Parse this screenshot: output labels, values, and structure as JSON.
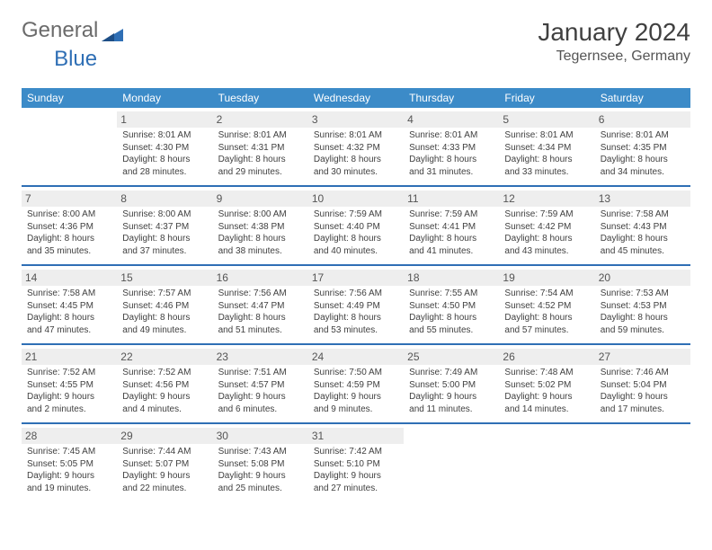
{
  "brand": {
    "part1": "General",
    "part2": "Blue"
  },
  "title": "January 2024",
  "location": "Tegernsee, Germany",
  "colors": {
    "header_bg": "#3c8bc8",
    "border": "#2f6fb5",
    "daynum_bg": "#eeeeee"
  },
  "dayNames": [
    "Sunday",
    "Monday",
    "Tuesday",
    "Wednesday",
    "Thursday",
    "Friday",
    "Saturday"
  ],
  "weeks": [
    [
      {
        "n": "",
        "sunrise": "",
        "sunset": "",
        "daylight": ""
      },
      {
        "n": "1",
        "sunrise": "Sunrise: 8:01 AM",
        "sunset": "Sunset: 4:30 PM",
        "daylight": "Daylight: 8 hours and 28 minutes."
      },
      {
        "n": "2",
        "sunrise": "Sunrise: 8:01 AM",
        "sunset": "Sunset: 4:31 PM",
        "daylight": "Daylight: 8 hours and 29 minutes."
      },
      {
        "n": "3",
        "sunrise": "Sunrise: 8:01 AM",
        "sunset": "Sunset: 4:32 PM",
        "daylight": "Daylight: 8 hours and 30 minutes."
      },
      {
        "n": "4",
        "sunrise": "Sunrise: 8:01 AM",
        "sunset": "Sunset: 4:33 PM",
        "daylight": "Daylight: 8 hours and 31 minutes."
      },
      {
        "n": "5",
        "sunrise": "Sunrise: 8:01 AM",
        "sunset": "Sunset: 4:34 PM",
        "daylight": "Daylight: 8 hours and 33 minutes."
      },
      {
        "n": "6",
        "sunrise": "Sunrise: 8:01 AM",
        "sunset": "Sunset: 4:35 PM",
        "daylight": "Daylight: 8 hours and 34 minutes."
      }
    ],
    [
      {
        "n": "7",
        "sunrise": "Sunrise: 8:00 AM",
        "sunset": "Sunset: 4:36 PM",
        "daylight": "Daylight: 8 hours and 35 minutes."
      },
      {
        "n": "8",
        "sunrise": "Sunrise: 8:00 AM",
        "sunset": "Sunset: 4:37 PM",
        "daylight": "Daylight: 8 hours and 37 minutes."
      },
      {
        "n": "9",
        "sunrise": "Sunrise: 8:00 AM",
        "sunset": "Sunset: 4:38 PM",
        "daylight": "Daylight: 8 hours and 38 minutes."
      },
      {
        "n": "10",
        "sunrise": "Sunrise: 7:59 AM",
        "sunset": "Sunset: 4:40 PM",
        "daylight": "Daylight: 8 hours and 40 minutes."
      },
      {
        "n": "11",
        "sunrise": "Sunrise: 7:59 AM",
        "sunset": "Sunset: 4:41 PM",
        "daylight": "Daylight: 8 hours and 41 minutes."
      },
      {
        "n": "12",
        "sunrise": "Sunrise: 7:59 AM",
        "sunset": "Sunset: 4:42 PM",
        "daylight": "Daylight: 8 hours and 43 minutes."
      },
      {
        "n": "13",
        "sunrise": "Sunrise: 7:58 AM",
        "sunset": "Sunset: 4:43 PM",
        "daylight": "Daylight: 8 hours and 45 minutes."
      }
    ],
    [
      {
        "n": "14",
        "sunrise": "Sunrise: 7:58 AM",
        "sunset": "Sunset: 4:45 PM",
        "daylight": "Daylight: 8 hours and 47 minutes."
      },
      {
        "n": "15",
        "sunrise": "Sunrise: 7:57 AM",
        "sunset": "Sunset: 4:46 PM",
        "daylight": "Daylight: 8 hours and 49 minutes."
      },
      {
        "n": "16",
        "sunrise": "Sunrise: 7:56 AM",
        "sunset": "Sunset: 4:47 PM",
        "daylight": "Daylight: 8 hours and 51 minutes."
      },
      {
        "n": "17",
        "sunrise": "Sunrise: 7:56 AM",
        "sunset": "Sunset: 4:49 PM",
        "daylight": "Daylight: 8 hours and 53 minutes."
      },
      {
        "n": "18",
        "sunrise": "Sunrise: 7:55 AM",
        "sunset": "Sunset: 4:50 PM",
        "daylight": "Daylight: 8 hours and 55 minutes."
      },
      {
        "n": "19",
        "sunrise": "Sunrise: 7:54 AM",
        "sunset": "Sunset: 4:52 PM",
        "daylight": "Daylight: 8 hours and 57 minutes."
      },
      {
        "n": "20",
        "sunrise": "Sunrise: 7:53 AM",
        "sunset": "Sunset: 4:53 PM",
        "daylight": "Daylight: 8 hours and 59 minutes."
      }
    ],
    [
      {
        "n": "21",
        "sunrise": "Sunrise: 7:52 AM",
        "sunset": "Sunset: 4:55 PM",
        "daylight": "Daylight: 9 hours and 2 minutes."
      },
      {
        "n": "22",
        "sunrise": "Sunrise: 7:52 AM",
        "sunset": "Sunset: 4:56 PM",
        "daylight": "Daylight: 9 hours and 4 minutes."
      },
      {
        "n": "23",
        "sunrise": "Sunrise: 7:51 AM",
        "sunset": "Sunset: 4:57 PM",
        "daylight": "Daylight: 9 hours and 6 minutes."
      },
      {
        "n": "24",
        "sunrise": "Sunrise: 7:50 AM",
        "sunset": "Sunset: 4:59 PM",
        "daylight": "Daylight: 9 hours and 9 minutes."
      },
      {
        "n": "25",
        "sunrise": "Sunrise: 7:49 AM",
        "sunset": "Sunset: 5:00 PM",
        "daylight": "Daylight: 9 hours and 11 minutes."
      },
      {
        "n": "26",
        "sunrise": "Sunrise: 7:48 AM",
        "sunset": "Sunset: 5:02 PM",
        "daylight": "Daylight: 9 hours and 14 minutes."
      },
      {
        "n": "27",
        "sunrise": "Sunrise: 7:46 AM",
        "sunset": "Sunset: 5:04 PM",
        "daylight": "Daylight: 9 hours and 17 minutes."
      }
    ],
    [
      {
        "n": "28",
        "sunrise": "Sunrise: 7:45 AM",
        "sunset": "Sunset: 5:05 PM",
        "daylight": "Daylight: 9 hours and 19 minutes."
      },
      {
        "n": "29",
        "sunrise": "Sunrise: 7:44 AM",
        "sunset": "Sunset: 5:07 PM",
        "daylight": "Daylight: 9 hours and 22 minutes."
      },
      {
        "n": "30",
        "sunrise": "Sunrise: 7:43 AM",
        "sunset": "Sunset: 5:08 PM",
        "daylight": "Daylight: 9 hours and 25 minutes."
      },
      {
        "n": "31",
        "sunrise": "Sunrise: 7:42 AM",
        "sunset": "Sunset: 5:10 PM",
        "daylight": "Daylight: 9 hours and 27 minutes."
      },
      {
        "n": "",
        "sunrise": "",
        "sunset": "",
        "daylight": ""
      },
      {
        "n": "",
        "sunrise": "",
        "sunset": "",
        "daylight": ""
      },
      {
        "n": "",
        "sunrise": "",
        "sunset": "",
        "daylight": ""
      }
    ]
  ]
}
